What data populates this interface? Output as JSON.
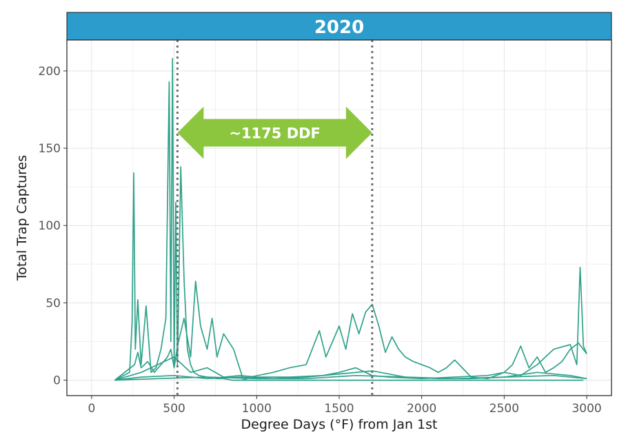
{
  "chart_data": {
    "type": "line",
    "facet_title": "2020",
    "title": "",
    "xlabel": "Degree Days (°F) from Jan 1st",
    "ylabel": "Total Trap Captures",
    "xlim": [
      -150,
      3150
    ],
    "ylim": [
      -10,
      220
    ],
    "x_ticks": [
      0,
      500,
      1000,
      1500,
      2000,
      2500,
      3000
    ],
    "y_ticks": [
      0,
      50,
      100,
      150,
      200
    ],
    "grid": true,
    "legend": "none",
    "colors": {
      "series": "#2fa18a",
      "facet_strip": "#2b9ccb",
      "arrow": "#8cc63f",
      "marker_line": "#6e6e6e"
    },
    "vlines": [
      520,
      1700
    ],
    "annotation": {
      "text": "~1175 DDF",
      "x_start": 520,
      "x_end": 1700,
      "y": 160
    },
    "series": [
      {
        "x": [
          140,
          230,
          245,
          255,
          265,
          280,
          300,
          330,
          360,
          390,
          420,
          450,
          470,
          480,
          490,
          500,
          510,
          520,
          540,
          560,
          580,
          600,
          620,
          650,
          700,
          760,
          800,
          850,
          900,
          950,
          1000,
          1100,
          1200,
          1300,
          1400,
          1500,
          1600,
          1700,
          1800,
          2000,
          2200,
          2400,
          2600,
          2800,
          2980
        ],
        "y": [
          0,
          5,
          37,
          134,
          20,
          52,
          10,
          48,
          5,
          8,
          20,
          40,
          193,
          25,
          208,
          10,
          115,
          10,
          138,
          65,
          20,
          10,
          5,
          3,
          2,
          1,
          1,
          0,
          0,
          0,
          0,
          0,
          0,
          0,
          0,
          0,
          0,
          0,
          0,
          0,
          0,
          0,
          0,
          0,
          0
        ]
      },
      {
        "x": [
          140,
          260,
          280,
          300,
          340,
          380,
          420,
          460,
          480,
          500,
          520,
          560,
          600,
          630,
          660,
          700,
          730,
          760,
          800,
          860,
          920,
          960,
          1100,
          1200,
          1300,
          1380,
          1420,
          1460,
          1500,
          1540,
          1580,
          1620,
          1660,
          1700,
          1740,
          1780,
          1820,
          1860,
          1900,
          1950,
          2000,
          2050,
          2100,
          2150,
          2200,
          2300,
          2400,
          2500,
          2600,
          2700,
          2800,
          2900,
          2940,
          2960,
          2980,
          3000
        ],
        "y": [
          0,
          10,
          18,
          8,
          12,
          5,
          10,
          15,
          20,
          8,
          22,
          40,
          15,
          64,
          35,
          20,
          40,
          15,
          30,
          20,
          0,
          2,
          5,
          8,
          10,
          32,
          15,
          25,
          35,
          20,
          43,
          30,
          44,
          49,
          35,
          18,
          28,
          20,
          15,
          12,
          10,
          8,
          5,
          8,
          13,
          2,
          1,
          5,
          3,
          10,
          20,
          23,
          10,
          73,
          22,
          17
        ]
      },
      {
        "x": [
          140,
          300,
          400,
          500,
          600,
          700,
          800,
          900,
          1000,
          1200,
          1400,
          1500,
          1600,
          1700,
          1800,
          2000,
          2200,
          2400,
          2500,
          2550,
          2600,
          2650,
          2700,
          2750,
          2800,
          2850,
          2900,
          2950,
          3000
        ],
        "y": [
          0,
          5,
          10,
          15,
          5,
          8,
          2,
          3,
          2,
          2,
          3,
          5,
          8,
          3,
          2,
          1,
          2,
          3,
          5,
          10,
          22,
          8,
          15,
          5,
          8,
          12,
          20,
          24,
          17
        ]
      },
      {
        "x": [
          140,
          300,
          500,
          700,
          900,
          1100,
          1300,
          1500,
          1700,
          1900,
          2100,
          2300,
          2500,
          2700,
          2900,
          3000
        ],
        "y": [
          0,
          2,
          3,
          1,
          2,
          1,
          2,
          4,
          6,
          2,
          1,
          1,
          2,
          5,
          3,
          1
        ]
      },
      {
        "x": [
          140,
          400,
          700,
          1000,
          1300,
          1600,
          1900,
          2200,
          2500,
          2800,
          3000
        ],
        "y": [
          0,
          1,
          2,
          1,
          1,
          3,
          2,
          1,
          2,
          3,
          1
        ]
      }
    ]
  }
}
